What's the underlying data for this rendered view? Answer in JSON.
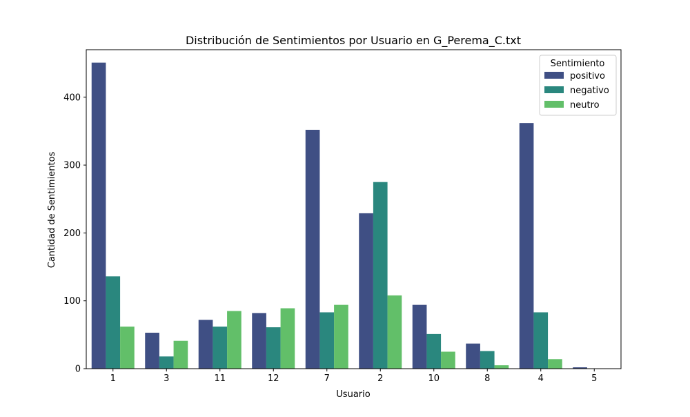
{
  "chart_data": {
    "type": "bar",
    "title": "Distribución de Sentimientos por Usuario en G_Perema_C.txt",
    "xlabel": "Usuario",
    "ylabel": "Cantidad de Sentimientos",
    "categories": [
      "1",
      "3",
      "11",
      "12",
      "7",
      "2",
      "10",
      "8",
      "4",
      "5"
    ],
    "ylim": [
      0,
      470
    ],
    "yticks": [
      0,
      100,
      200,
      300,
      400
    ],
    "grid": false,
    "legend": {
      "title": "Sentimiento",
      "placement": "top-right"
    },
    "series": [
      {
        "name": "positivo",
        "color": "#3f4f84",
        "values": [
          451,
          53,
          72,
          82,
          352,
          229,
          94,
          37,
          362,
          2
        ]
      },
      {
        "name": "negativo",
        "color": "#2a877e",
        "values": [
          136,
          18,
          62,
          61,
          83,
          275,
          51,
          26,
          83,
          0
        ]
      },
      {
        "name": "neutro",
        "color": "#62bf69",
        "values": [
          62,
          41,
          85,
          89,
          94,
          108,
          25,
          5,
          14,
          0
        ]
      }
    ]
  }
}
